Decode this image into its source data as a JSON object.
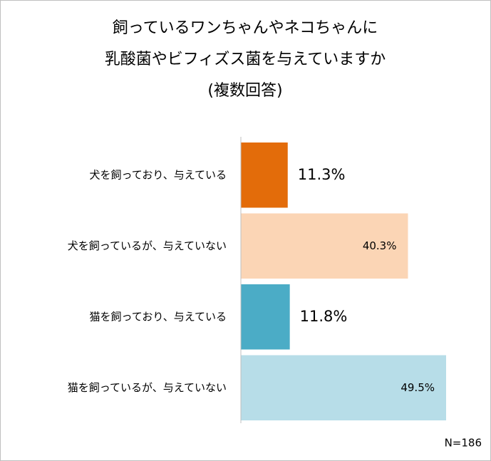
{
  "chart_data": {
    "type": "bar",
    "orientation": "horizontal",
    "title": [
      "飼っているワンちゃんやネコちゃんに",
      "乳酸菌やビフィズス菌を与えていますか",
      "(複数回答)"
    ],
    "categories": [
      "犬を飼っており、与えている",
      "犬を飼っているが、与えていない",
      "猫を飼っており、与えている",
      "猫を飼っているが、与えていない"
    ],
    "values": [
      11.3,
      40.3,
      11.8,
      49.5
    ],
    "value_labels": [
      "11.3%",
      "40.3%",
      "11.8%",
      "49.5%"
    ],
    "colors": [
      "#e36c0a",
      "#fbd5b5",
      "#4bacc6",
      "#b7dde8"
    ],
    "annotation": "N=186"
  }
}
